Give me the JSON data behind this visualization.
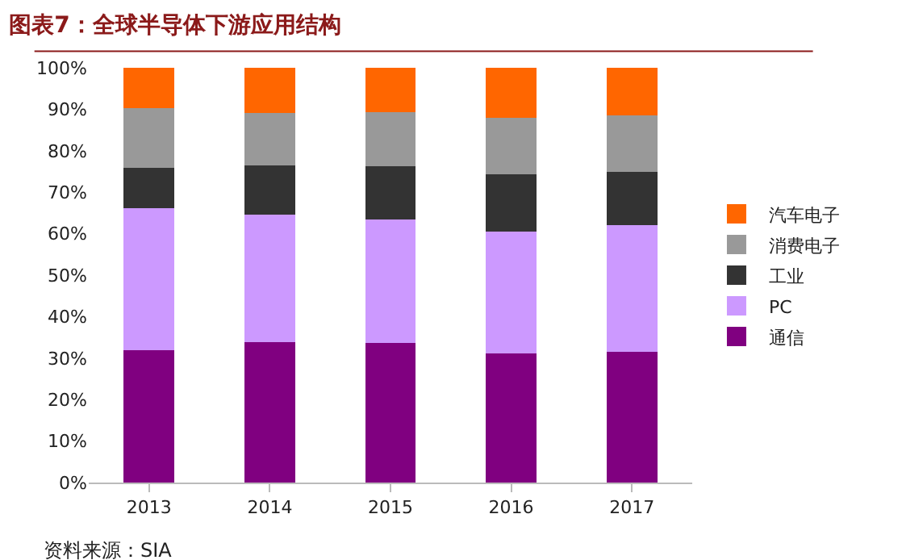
{
  "chart_data": {
    "type": "bar",
    "stacked": true,
    "title": "图表7：全球半导体下游应用结构",
    "categories": [
      "2013",
      "2014",
      "2015",
      "2016",
      "2017"
    ],
    "series": [
      {
        "name": "通信",
        "color": "#800080",
        "values": [
          32.0,
          33.9,
          33.6,
          31.1,
          31.5
        ]
      },
      {
        "name": "PC",
        "color": "#cc99ff",
        "values": [
          34.1,
          30.6,
          29.8,
          29.4,
          30.5
        ]
      },
      {
        "name": "工业",
        "color": "#333333",
        "values": [
          9.7,
          11.9,
          12.8,
          13.9,
          12.9
        ]
      },
      {
        "name": "消费电子",
        "color": "#999999",
        "values": [
          14.4,
          12.8,
          13.1,
          13.6,
          13.7
        ]
      },
      {
        "name": "汽车电子",
        "color": "#ff6600",
        "values": [
          9.8,
          10.8,
          10.7,
          12.0,
          11.4
        ]
      }
    ],
    "ylim": [
      0,
      100
    ],
    "yticks": [
      {
        "value": 0,
        "label": "0%"
      },
      {
        "value": 10,
        "label": "10%"
      },
      {
        "value": 20,
        "label": "20%"
      },
      {
        "value": 30,
        "label": "30%"
      },
      {
        "value": 40,
        "label": "40%"
      },
      {
        "value": 50,
        "label": "50%"
      },
      {
        "value": 60,
        "label": "60%"
      },
      {
        "value": 70,
        "label": "70%"
      },
      {
        "value": 80,
        "label": "80%"
      },
      {
        "value": 90,
        "label": "90%"
      },
      {
        "value": 100,
        "label": "100%"
      }
    ],
    "legend": "right",
    "annotations": [
      "资料来源：SIA"
    ]
  }
}
